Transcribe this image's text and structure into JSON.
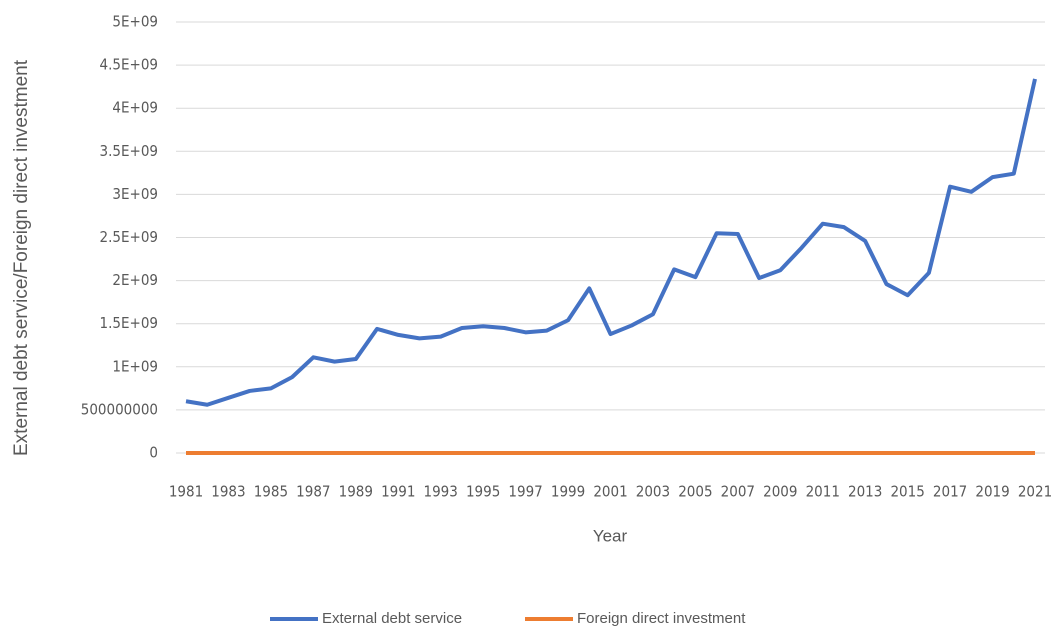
{
  "chart_data": {
    "type": "line",
    "x_label": "Year",
    "y_label": "External debt service/Foreign direct investment",
    "x": [
      1981,
      1982,
      1983,
      1984,
      1985,
      1986,
      1987,
      1988,
      1989,
      1990,
      1991,
      1992,
      1993,
      1994,
      1995,
      1996,
      1997,
      1998,
      1999,
      2000,
      2001,
      2002,
      2003,
      2004,
      2005,
      2006,
      2007,
      2008,
      2009,
      2010,
      2011,
      2012,
      2013,
      2014,
      2015,
      2016,
      2017,
      2018,
      2019,
      2020,
      2021
    ],
    "xlim": [
      1981,
      2021
    ],
    "xticks": [
      1981,
      1983,
      1985,
      1987,
      1989,
      1991,
      1993,
      1995,
      1997,
      1999,
      2001,
      2003,
      2005,
      2007,
      2009,
      2011,
      2013,
      2015,
      2017,
      2019,
      2021
    ],
    "ylim": [
      0,
      5000000000
    ],
    "yticks": [
      0,
      500000000,
      {
        "value": 1000000000,
        "label": "1E+09"
      },
      {
        "value": 1500000000,
        "label": "1.5E+09"
      },
      {
        "value": 2000000000,
        "label": "2E+09"
      },
      {
        "value": 2500000000,
        "label": "2.5E+09"
      },
      {
        "value": 3000000000,
        "label": "3E+09"
      },
      {
        "value": 3500000000,
        "label": "3.5E+09"
      },
      {
        "value": 4000000000,
        "label": "4E+09"
      },
      {
        "value": 4500000000,
        "label": "4.5E+09"
      },
      {
        "value": 5000000000,
        "label": "5E+09"
      }
    ],
    "grid": true,
    "legend": "bottom",
    "series": [
      {
        "name": "External debt service",
        "color": "#4472c4",
        "values": [
          600000000,
          560000000,
          640000000,
          720000000,
          750000000,
          880000000,
          1110000000,
          1060000000,
          1090000000,
          1440000000,
          1370000000,
          1330000000,
          1350000000,
          1450000000,
          1470000000,
          1450000000,
          1400000000,
          1420000000,
          1540000000,
          1910000000,
          1380000000,
          1480000000,
          1610000000,
          2130000000,
          2040000000,
          2550000000,
          2540000000,
          2030000000,
          2120000000,
          2380000000,
          2660000000,
          2620000000,
          2460000000,
          1960000000,
          1830000000,
          2090000000,
          3090000000,
          3030000000,
          3200000000,
          3240000000,
          4340000000
        ]
      },
      {
        "name": "Foreign direct investment",
        "color": "#ed7d31",
        "values": [
          0,
          0,
          0,
          0,
          0,
          0,
          0,
          0,
          0,
          0,
          0,
          0,
          0,
          0,
          0,
          0,
          0,
          0,
          0,
          0,
          0,
          0,
          0,
          0,
          0,
          0,
          0,
          0,
          0,
          0,
          0,
          0,
          0,
          0,
          0,
          0,
          0,
          0,
          0,
          0,
          0
        ]
      }
    ]
  }
}
